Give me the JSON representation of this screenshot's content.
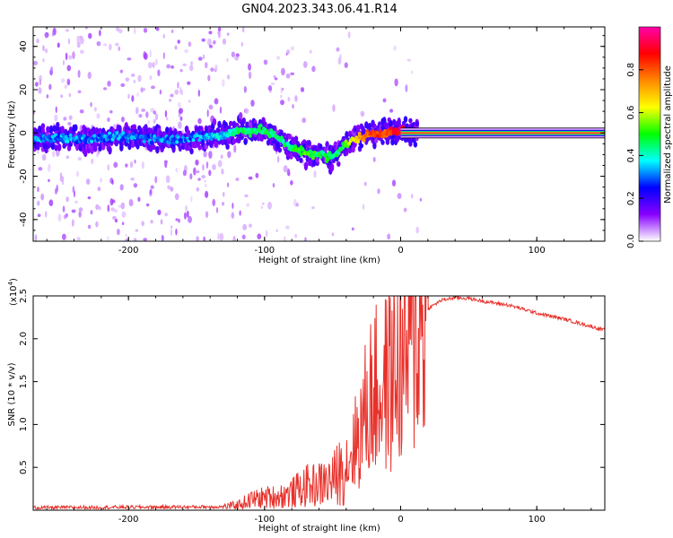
{
  "title": "GN04.2023.343.06.41.R14",
  "chart_data": [
    {
      "type": "heatmap",
      "xlabel": "Height of straight line (km)",
      "ylabel": "Frequency (Hz)",
      "xlim": [
        -270,
        150
      ],
      "ylim": [
        -50,
        49
      ],
      "x_ticks": [
        -200,
        -100,
        0,
        100
      ],
      "y_ticks": [
        -40,
        -20,
        0,
        20,
        40
      ],
      "colorbar": {
        "label": "Normalized spectral amplitude",
        "range": [
          0,
          1
        ],
        "ticks": [
          0.0,
          0.2,
          0.4,
          0.6,
          0.8
        ],
        "colormap": [
          "#ffffff",
          "#8800ff",
          "#0000ff",
          "#00ffff",
          "#00ff00",
          "#ffff00",
          "#ff8800",
          "#ff0000",
          "#ff00aa"
        ]
      },
      "ridge": {
        "x": [
          -270,
          -250,
          -230,
          -210,
          -190,
          -170,
          -150,
          -130,
          -120,
          -110,
          -100,
          -90,
          -80,
          -70,
          -60,
          -50,
          -40,
          -30,
          -20,
          -10,
          0,
          10,
          150
        ],
        "y": [
          -3,
          -2,
          -3,
          -2,
          -2,
          -3,
          -2,
          -1,
          1,
          1,
          1,
          -2,
          -7,
          -9,
          -10,
          -11,
          -5,
          -2,
          0,
          0,
          1,
          0,
          0
        ],
        "amplitude": [
          0.3,
          0.3,
          0.3,
          0.3,
          0.3,
          0.3,
          0.3,
          0.35,
          0.45,
          0.45,
          0.45,
          0.4,
          0.45,
          0.5,
          0.45,
          0.45,
          0.5,
          0.7,
          0.8,
          0.8,
          0.9,
          1.0,
          1.0
        ]
      }
    },
    {
      "type": "line",
      "xlabel": "Height of straight line (km)",
      "ylabel": "SNR (10 * v/v)",
      "y_multiplier": "(x10",
      "y_multiplier_exp": "4",
      "y_multiplier_close": ")",
      "xlim": [
        -270,
        150
      ],
      "ylim": [
        0,
        2.5
      ],
      "x_ticks": [
        -200,
        -100,
        0,
        100
      ],
      "y_ticks": [
        0.5,
        1.0,
        1.5,
        2.0,
        2.5
      ],
      "color": "#e8312b",
      "series": [
        {
          "x": [
            -270,
            -130,
            -120,
            -110,
            -100,
            -90,
            -80,
            -70,
            -60,
            -50,
            -40,
            -30,
            -25,
            -20,
            -15,
            -10,
            0,
            10,
            20,
            30,
            40,
            50,
            60,
            80,
            100,
            120,
            150
          ],
          "values": [
            0.03,
            0.04,
            0.06,
            0.12,
            0.15,
            0.16,
            0.2,
            0.28,
            0.3,
            0.35,
            0.55,
            0.9,
            1.2,
            1.4,
            1.35,
            1.5,
            1.7,
            2.1,
            2.35,
            2.45,
            2.48,
            2.47,
            2.44,
            2.39,
            2.3,
            2.23,
            2.1
          ]
        }
      ]
    }
  ]
}
